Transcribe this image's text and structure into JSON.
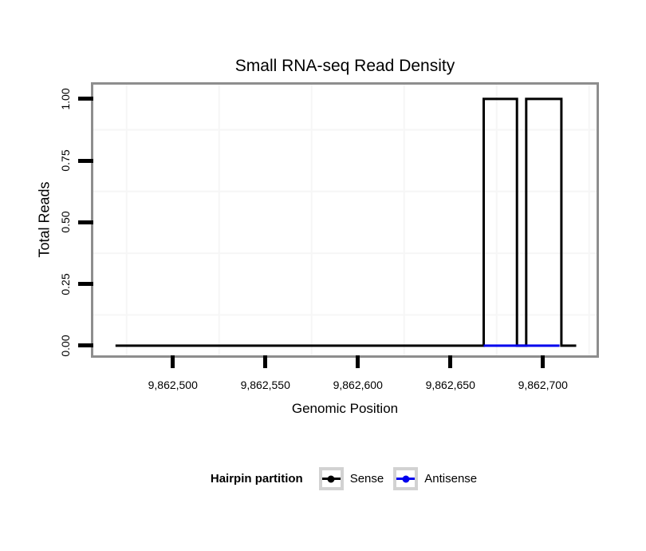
{
  "chart_data": {
    "type": "line",
    "title": "Small RNA-seq Read Density",
    "xlabel": "Genomic Position",
    "ylabel": "Total Reads",
    "xlim": [
      9862457,
      9862729
    ],
    "ylim": [
      -0.039,
      1.058
    ],
    "grid": "minor gridlines only, very faint, on white panel",
    "x_ticks": [
      {
        "value": 9862500,
        "label": "9,862,500"
      },
      {
        "value": 9862550,
        "label": "9,862,550"
      },
      {
        "value": 9862600,
        "label": "9,862,600"
      },
      {
        "value": 9862650,
        "label": "9,862,650"
      },
      {
        "value": 9862700,
        "label": "9,862,700"
      }
    ],
    "y_ticks": [
      {
        "value": 0,
        "label": "0.00"
      },
      {
        "value": 0.25,
        "label": "0.25"
      },
      {
        "value": 0.5,
        "label": "0.50"
      },
      {
        "value": 0.75,
        "label": "0.75"
      },
      {
        "value": 1,
        "label": "1.00"
      }
    ],
    "x_minor_gridlines": [
      9862475,
      9862525,
      9862575,
      9862625,
      9862675,
      9862725
    ],
    "y_minor_gridlines": [
      0.125,
      0.375,
      0.625,
      0.875
    ],
    "gridline_color": "#f6f6f6",
    "series": [
      {
        "name": "Sense",
        "color": "#000000",
        "points": [
          [
            9862469,
            0
          ],
          [
            9862668,
            0
          ],
          [
            9862668,
            1
          ],
          [
            9862686,
            1
          ],
          [
            9862686,
            0
          ],
          [
            9862691,
            0
          ],
          [
            9862691,
            1
          ],
          [
            9862710,
            1
          ],
          [
            9862710,
            0
          ],
          [
            9862718,
            0
          ]
        ]
      },
      {
        "name": "Antisense",
        "color": "#0000EE",
        "points": [
          [
            9862668,
            0
          ],
          [
            9862709,
            0
          ]
        ]
      }
    ],
    "legend": {
      "title": "Hairpin partition",
      "position": "bottom",
      "entries": [
        {
          "label": "Sense",
          "color": "#000000"
        },
        {
          "label": "Antisense",
          "color": "#0000EE"
        }
      ]
    },
    "panel_border_color": "#8e8e8e",
    "tick_color": "#000000"
  }
}
